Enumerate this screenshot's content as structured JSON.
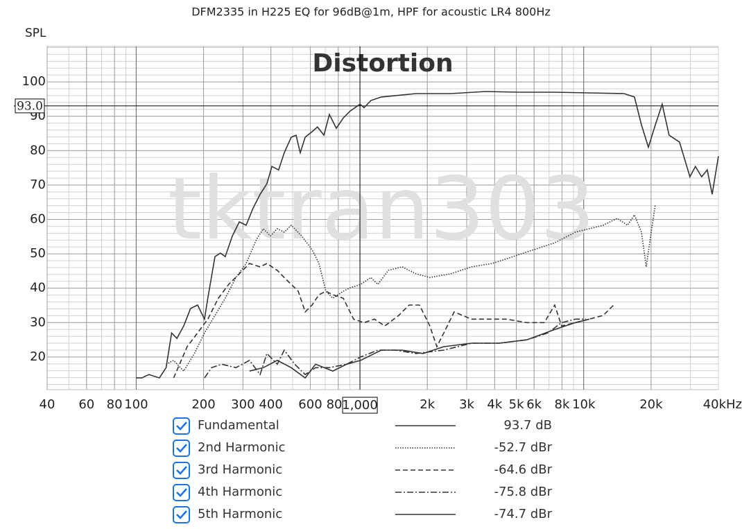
{
  "chart_data": {
    "type": "line",
    "title": "DFM2335 in H225 EQ for 96dB@1m, HPF for acoustic LR4 800Hz",
    "y_label": "SPL",
    "annotation": "Distortion",
    "watermark": "tktran303",
    "x_log": true,
    "xlim": [
      40,
      40000
    ],
    "ylim": [
      10.5,
      110.3
    ],
    "xticks": [
      40,
      60,
      80,
      100,
      200,
      300,
      400,
      600,
      800,
      {
        "value": 2000,
        "label": "2k"
      },
      {
        "value": 3000,
        "label": "3k"
      },
      {
        "value": 4000,
        "label": "4k"
      },
      {
        "value": 5000,
        "label": "5k"
      },
      {
        "value": 6000,
        "label": "6k"
      },
      {
        "value": 8000,
        "label": "8k"
      },
      {
        "value": 10000,
        "label": "10k"
      },
      {
        "value": 20000,
        "label": "20k"
      },
      {
        "value": 40000,
        "label": "40kHz"
      }
    ],
    "yticks": [
      20,
      30,
      40,
      50,
      60,
      70,
      80,
      90,
      100
    ],
    "xgrid": [
      40,
      50,
      60,
      70,
      80,
      90,
      100,
      200,
      300,
      400,
      500,
      600,
      700,
      800,
      900,
      1000,
      2000,
      3000,
      4000,
      5000,
      6000,
      7000,
      8000,
      9000,
      10000,
      20000,
      30000,
      40000
    ],
    "ygrid": [
      12,
      14,
      16,
      18,
      20,
      22,
      24,
      26,
      28,
      30,
      32,
      34,
      36,
      38,
      40,
      42,
      44,
      46,
      48,
      50,
      52,
      54,
      56,
      58,
      60,
      62,
      64,
      66,
      68,
      70,
      72,
      74,
      76,
      78,
      80,
      82,
      84,
      86,
      88,
      90,
      92,
      94,
      96,
      98,
      100,
      102,
      104,
      106,
      108,
      110
    ],
    "cursor_x": {
      "value": 1000,
      "label": "1,000"
    },
    "cursor_y": {
      "value": 93,
      "label": "93.0"
    },
    "series": [
      {
        "name": "Fundamental",
        "color": "#333333",
        "dash": "solid",
        "legend_value": "93.7 dB",
        "x": [
          100,
          106,
          114,
          127,
          136,
          144,
          152,
          163,
          175,
          188,
          202,
          209,
          225,
          238,
          250,
          269,
          289,
          310,
          333,
          358,
          384,
          404,
          433,
          459,
          493,
          518,
          541,
          569,
          611,
          646,
          690,
          730,
          784,
          842,
          904,
          1000,
          1043,
          1120,
          1246,
          1438,
          1781,
          2545,
          3635,
          5195,
          7417,
          10600,
          15140,
          16860,
          18110,
          19460,
          20890,
          22430,
          24090,
          26800,
          29840,
          31560,
          33660,
          35650,
          37500,
          40000
        ],
        "values": [
          13.9,
          13.9,
          14.9,
          13.9,
          16.9,
          27.0,
          25.4,
          29.0,
          34.1,
          35.1,
          31.0,
          37.1,
          49.2,
          50.2,
          49.2,
          55.2,
          59.3,
          58.3,
          63.3,
          67.3,
          70.4,
          75.4,
          74.4,
          79.4,
          83.9,
          84.5,
          79.4,
          83.9,
          85.5,
          86.9,
          84.5,
          90.5,
          86.5,
          89.5,
          91.5,
          93.5,
          92.5,
          94.6,
          95.6,
          96.0,
          96.6,
          96.6,
          97.2,
          97.0,
          97.0,
          96.8,
          96.6,
          95.6,
          87.5,
          81.0,
          87.5,
          93.5,
          84.5,
          82.5,
          72.4,
          75.4,
          72.4,
          74.4,
          67.3,
          78.4
        ]
      },
      {
        "name": "2nd Harmonic",
        "color": "#333333",
        "dash": "dotted",
        "legend_value": "-52.7 dBr",
        "x": [
          136,
          147,
          163,
          182,
          202,
          225,
          250,
          279,
          310,
          345,
          370,
          398,
          427,
          459,
          493,
          549,
          611,
          656,
          704,
          756,
          842,
          904,
          1007,
          1120,
          1203,
          1339,
          1545,
          1781,
          2053,
          2545,
          3152,
          3904,
          4836,
          5990,
          7417,
          9190,
          10600,
          12230,
          14100,
          15690,
          16860,
          18110,
          19030,
          20140,
          20890
        ],
        "values": [
          17.9,
          19.0,
          15.9,
          21.0,
          27.0,
          32.1,
          37.1,
          43.1,
          47.2,
          54.2,
          57.3,
          55.2,
          57.3,
          56.3,
          58.3,
          55.2,
          51.2,
          47.2,
          39.1,
          37.1,
          39.1,
          40.1,
          41.1,
          43.1,
          41.1,
          45.2,
          46.2,
          44.2,
          43.1,
          44.2,
          46.2,
          47.2,
          49.2,
          51.2,
          53.2,
          56.3,
          57.3,
          58.3,
          60.3,
          58.3,
          61.3,
          56.3,
          46.2,
          57.3,
          64.3
        ]
      },
      {
        "name": "3rd Harmonic",
        "color": "#333333",
        "dash": "dashed",
        "legend_value": "-64.6 dBr",
        "x": [
          147,
          169,
          188,
          209,
          233,
          259,
          289,
          321,
          358,
          384,
          427,
          459,
          493,
          530,
          569,
          611,
          656,
          704,
          756,
          842,
          937,
          1043,
          1160,
          1291,
          1490,
          1659,
          1845,
          2053,
          2206,
          2370,
          2637,
          3152,
          3635,
          4505,
          5578,
          6667,
          7417,
          7970,
          9190,
          10600,
          12230,
          13610
        ],
        "values": [
          13.9,
          23.0,
          27.0,
          31.0,
          37.1,
          41.1,
          44.2,
          47.2,
          46.2,
          47.2,
          45.2,
          43.1,
          41.1,
          39.1,
          33.1,
          35.1,
          38.1,
          39.1,
          38.1,
          37.1,
          31.0,
          30.0,
          31.0,
          29.0,
          32.1,
          35.1,
          35.1,
          29.0,
          23.0,
          27.0,
          33.1,
          31.0,
          31.0,
          31.0,
          30.0,
          30.0,
          35.1,
          29.0,
          30.0,
          31.0,
          32.1,
          35.1
        ]
      },
      {
        "name": "4th Harmonic",
        "color": "#333333",
        "dash": "dashdot",
        "legend_value": "-75.8 dBr",
        "x": [
          202,
          217,
          241,
          279,
          321,
          358,
          384,
          427,
          459,
          511,
          569,
          633,
          730,
          872,
          1007,
          1203,
          1438,
          1781,
          2370,
          3152,
          4193,
          5578,
          6912,
          7970,
          9190,
          10230
        ],
        "values": [
          13.9,
          16.9,
          17.9,
          16.9,
          19.0,
          14.9,
          21.0,
          17.9,
          22.0,
          17.9,
          14.9,
          16.9,
          16.9,
          17.9,
          20.0,
          22.0,
          22.0,
          21.0,
          22.0,
          24.0,
          24.0,
          25.0,
          27.0,
          30.0,
          31.0,
          31.0
        ]
      },
      {
        "name": "5th Harmonic",
        "color": "#333333",
        "dash": "solid",
        "legend_value": "-74.7 dBr",
        "x": [
          321,
          370,
          427,
          493,
          569,
          633,
          756,
          872,
          1007,
          1246,
          1545,
          1912,
          2370,
          3152,
          4193,
          5578,
          7417,
          9190,
          10600
        ],
        "values": [
          15.9,
          16.9,
          19.0,
          16.9,
          13.9,
          17.9,
          15.9,
          17.9,
          19.0,
          22.0,
          22.0,
          21.0,
          23.0,
          24.0,
          24.0,
          25.0,
          28.0,
          30.0,
          31.0
        ]
      }
    ]
  }
}
